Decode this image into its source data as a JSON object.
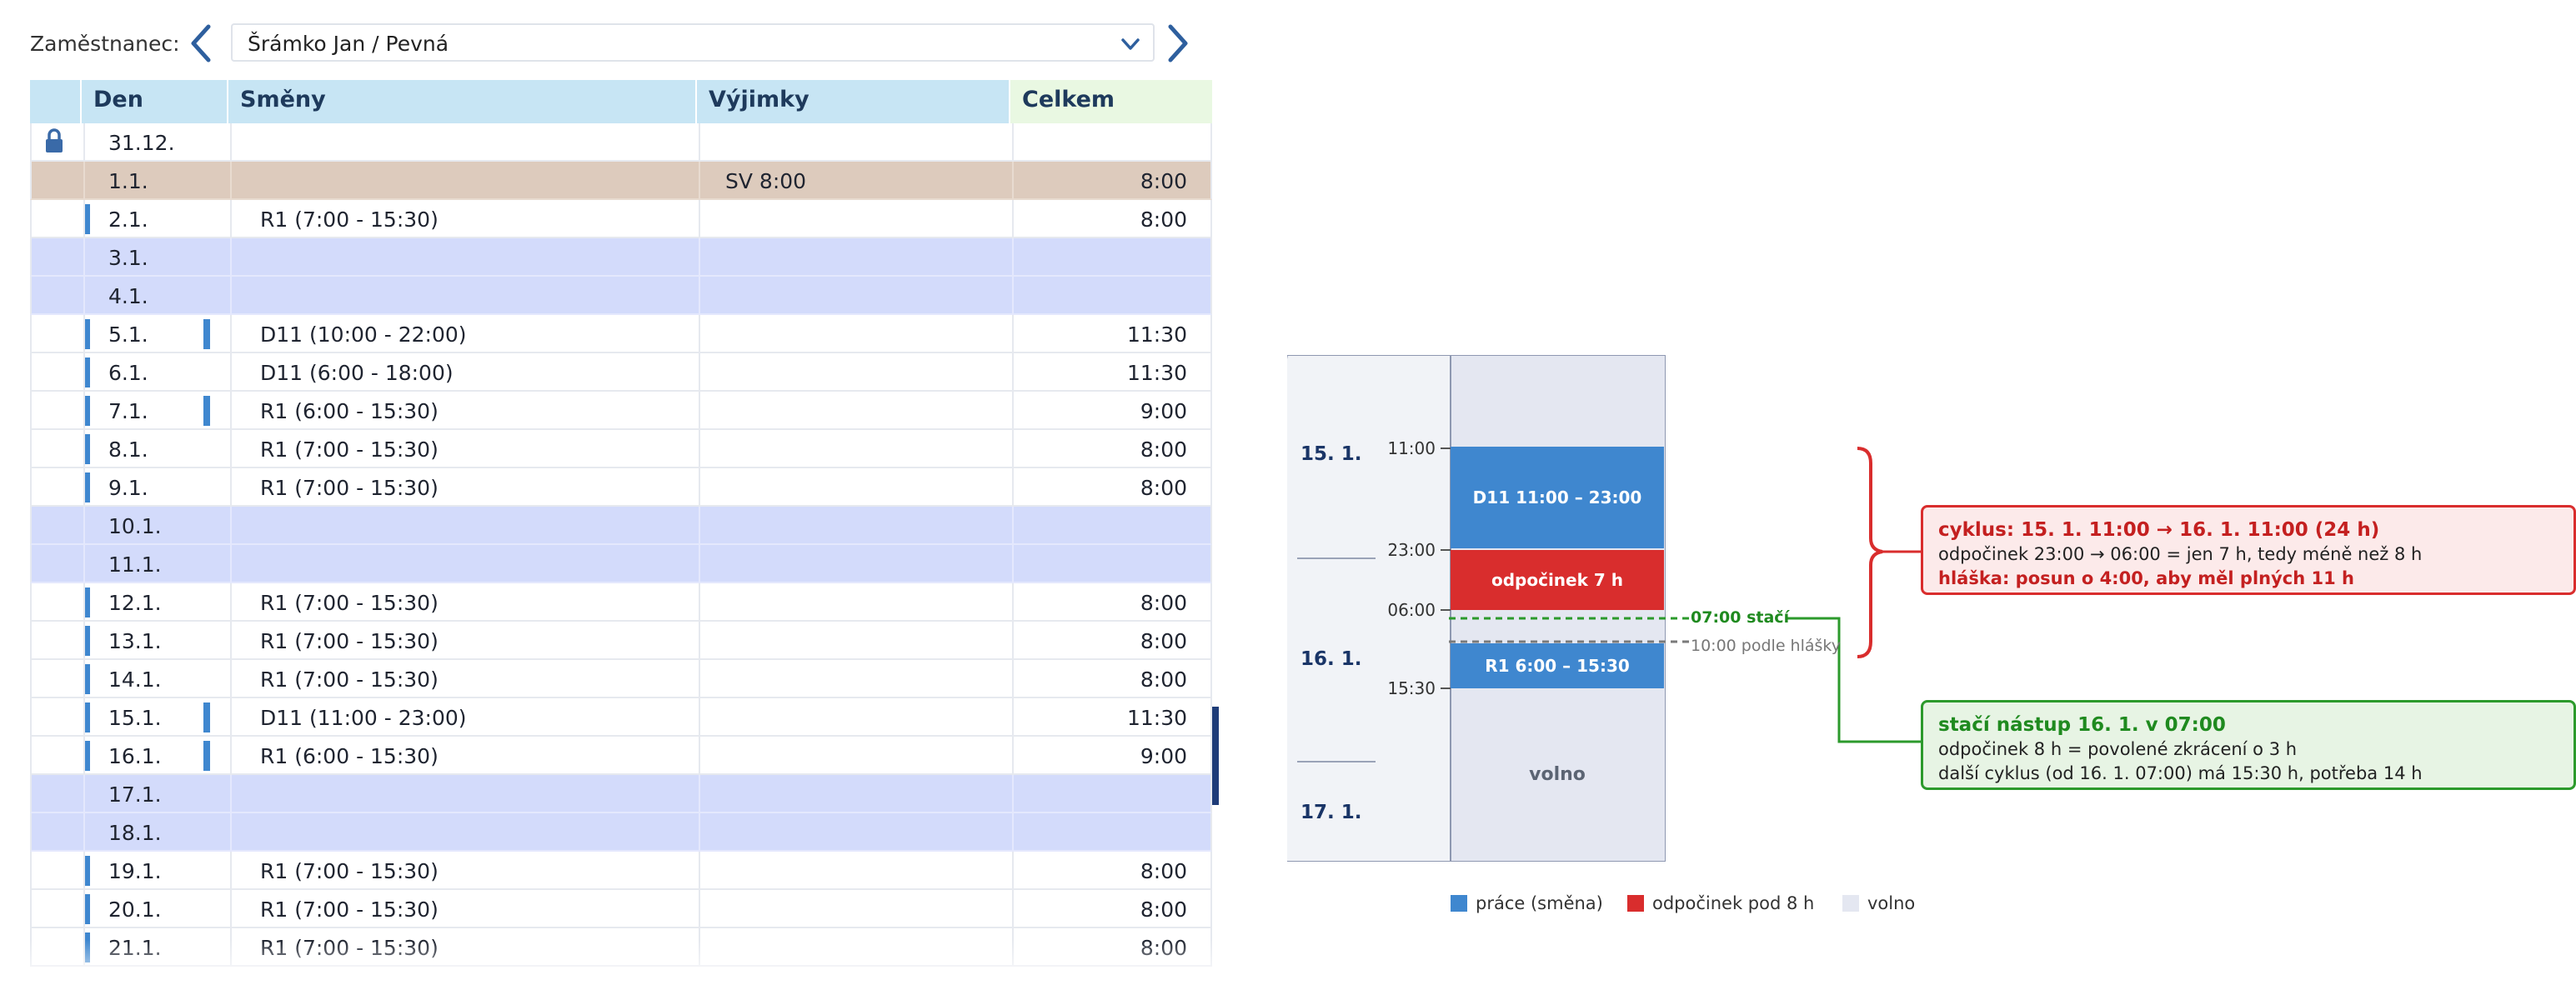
{
  "employee": {
    "label": "Zaměstnanec:",
    "selected": "Šrámko Jan / Pevná"
  },
  "table": {
    "headers": [
      "Den",
      "Směny",
      "Výjimky",
      "Celkem"
    ],
    "rows": [
      {
        "day": "31.12.",
        "shift": "",
        "exception": "",
        "total": "",
        "kind": "locked"
      },
      {
        "day": "1.1.",
        "shift": "",
        "exception": "SV 8:00",
        "total": "8:00",
        "kind": "holiday"
      },
      {
        "day": "2.1.",
        "shift": "R1 (7:00 - 15:30)",
        "exception": "",
        "total": "8:00",
        "kind": "work"
      },
      {
        "day": "3.1.",
        "shift": "",
        "exception": "",
        "total": "",
        "kind": "weekend"
      },
      {
        "day": "4.1.",
        "shift": "",
        "exception": "",
        "total": "",
        "kind": "weekend"
      },
      {
        "day": "5.1.",
        "shift": "D11 (10:00 - 22:00)",
        "exception": "",
        "total": "11:30",
        "kind": "work-mark"
      },
      {
        "day": "6.1.",
        "shift": "D11 (6:00 - 18:00)",
        "exception": "",
        "total": "11:30",
        "kind": "work"
      },
      {
        "day": "7.1.",
        "shift": "R1 (6:00 - 15:30)",
        "exception": "",
        "total": "9:00",
        "kind": "work-mark"
      },
      {
        "day": "8.1.",
        "shift": "R1 (7:00 - 15:30)",
        "exception": "",
        "total": "8:00",
        "kind": "work"
      },
      {
        "day": "9.1.",
        "shift": "R1 (7:00 - 15:30)",
        "exception": "",
        "total": "8:00",
        "kind": "work"
      },
      {
        "day": "10.1.",
        "shift": "",
        "exception": "",
        "total": "",
        "kind": "weekend"
      },
      {
        "day": "11.1.",
        "shift": "",
        "exception": "",
        "total": "",
        "kind": "weekend"
      },
      {
        "day": "12.1.",
        "shift": "R1 (7:00 - 15:30)",
        "exception": "",
        "total": "8:00",
        "kind": "work"
      },
      {
        "day": "13.1.",
        "shift": "R1 (7:00 - 15:30)",
        "exception": "",
        "total": "8:00",
        "kind": "work"
      },
      {
        "day": "14.1.",
        "shift": "R1 (7:00 - 15:30)",
        "exception": "",
        "total": "8:00",
        "kind": "work"
      },
      {
        "day": "15.1.",
        "shift": "D11 (11:00 - 23:00)",
        "exception": "",
        "total": "11:30",
        "kind": "work-mark"
      },
      {
        "day": "16.1.",
        "shift": "R1 (6:00 - 15:30)",
        "exception": "",
        "total": "9:00",
        "kind": "work-mark"
      },
      {
        "day": "17.1.",
        "shift": "",
        "exception": "",
        "total": "",
        "kind": "weekend"
      },
      {
        "day": "18.1.",
        "shift": "",
        "exception": "",
        "total": "",
        "kind": "weekend"
      },
      {
        "day": "19.1.",
        "shift": "R1 (7:00 - 15:30)",
        "exception": "",
        "total": "8:00",
        "kind": "work"
      },
      {
        "day": "20.1.",
        "shift": "R1 (7:00 - 15:30)",
        "exception": "",
        "total": "8:00",
        "kind": "work"
      },
      {
        "day": "21.1.",
        "shift": "R1 (7:00 - 15:30)",
        "exception": "",
        "total": "8:00",
        "kind": "work"
      }
    ]
  },
  "detail": {
    "days": [
      "15. 1.",
      "16. 1.",
      "17. 1."
    ],
    "ticks": [
      "11:00",
      "23:00",
      "06:00",
      "15:30"
    ],
    "segments": {
      "work1": "D11 11:00 – 23:00",
      "rest": "odpočinek 7 h",
      "work2": "R1 6:00 – 15:30",
      "free": "volno"
    },
    "annotations": {
      "green": "07:00 stačí",
      "gray": "10:00 podle hlášky"
    },
    "callout_red": {
      "title": "cyklus: 15. 1. 11:00 → 16. 1. 11:00 (24 h)",
      "line1": "odpočinek 23:00 → 06:00 = jen 7 h, tedy méně než 8 h",
      "line2": "hláška: posun o 4:00, aby měl plných 11 h"
    },
    "callout_green": {
      "title": "stačí nástup 16. 1. v 07:00",
      "line1": "odpočinek 8 h = povolené zkrácení o 3 h",
      "line2": "další cyklus (od 16. 1. 07:00) má 15:30 h, potřeba 14 h"
    },
    "legend": [
      "práce (směna)",
      "odpočinek pod 8 h",
      "volno"
    ]
  },
  "colors": {
    "work": "#3f87cf",
    "rest": "#d92d2d",
    "free": "#e4e7f1",
    "weekend_row": "#d3dbfb",
    "holiday_row": "#ddcbbd",
    "ok": "#2c9a2c"
  }
}
